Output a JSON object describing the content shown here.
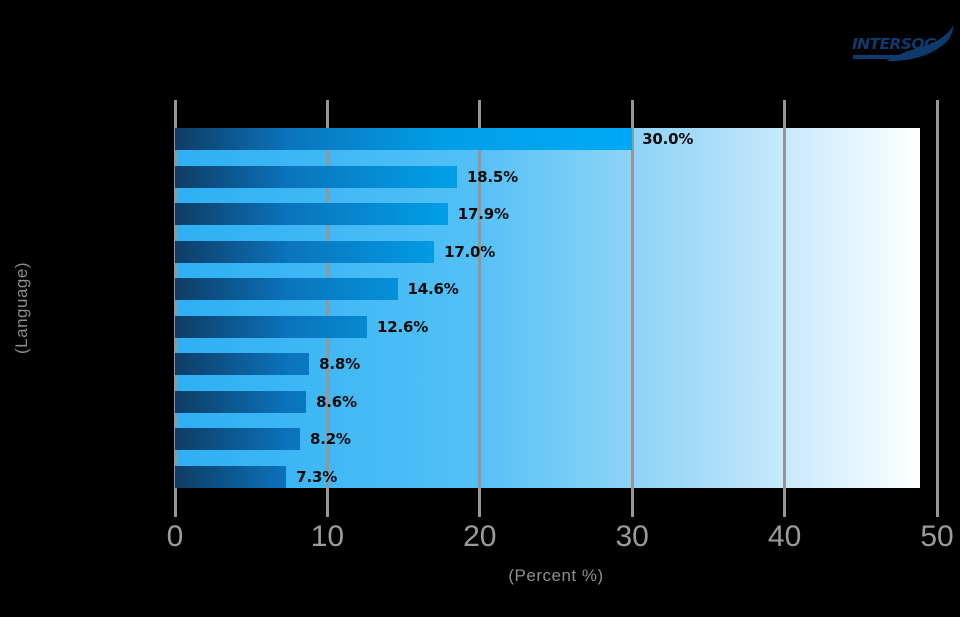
{
  "logo": {
    "text": "INTERSOG",
    "color": "#0e3a6e"
  },
  "axes": {
    "x_title": "(Percent %)",
    "y_title": "(Language)"
  },
  "chart_data": {
    "type": "bar",
    "orientation": "horizontal",
    "title": "",
    "xlabel": "(Percent %)",
    "ylabel": "(Language)",
    "xlim": [
      0,
      50
    ],
    "xticks": [
      0,
      10,
      20,
      30,
      40,
      50
    ],
    "grid": true,
    "legend": false,
    "values": [
      30.0,
      18.5,
      17.9,
      17.0,
      14.6,
      12.6,
      8.8,
      8.6,
      8.2,
      7.3
    ],
    "value_labels": [
      "30.0%",
      "18.5%",
      "17.9%",
      "17.0%",
      "14.6%",
      "12.6%",
      "8.8%",
      "8.6%",
      "8.2%",
      "7.3%"
    ],
    "gradient_reference_value": 30.0,
    "style": {
      "page_background": "#000000",
      "plot_gradient_left": "#2db0f3",
      "plot_gradient_right": "#ffffff",
      "bar_gradient_start": "#0e3c66",
      "bar_gradient_end": "#00a9f6",
      "gridline_color": "#969696",
      "tick_label_color": "#9b9b9b",
      "axis_title_color": "#8d8d8d",
      "value_label_color": "#0b0b0b"
    }
  }
}
